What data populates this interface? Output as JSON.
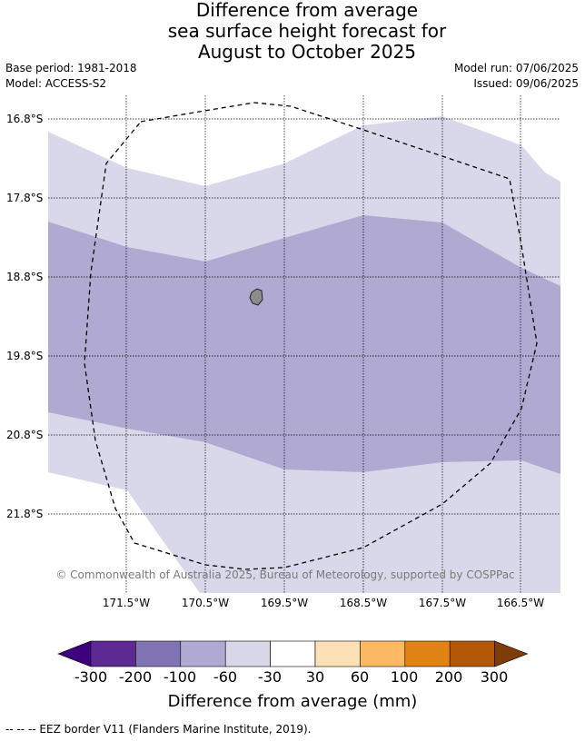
{
  "title_lines": [
    "Difference from average",
    "sea surface height forecast for",
    "August to October 2025"
  ],
  "meta": {
    "base_period": "Base period: 1981-2018",
    "model": "Model: ACCESS-S2",
    "model_run": "Model run: 07/06/2025",
    "issued": "Issued: 09/06/2025"
  },
  "map": {
    "lat_labels": [
      "16.8°S",
      "17.8°S",
      "18.8°S",
      "19.8°S",
      "20.8°S",
      "21.8°S"
    ],
    "lon_labels": [
      "171.5°W",
      "170.5°W",
      "169.5°W",
      "168.5°W",
      "167.5°W",
      "166.5°W"
    ],
    "copyright": "© Commonwealth of Australia 2025, Bureau of Meteorology, supported by COSPPac",
    "grid": true,
    "band_colors": {
      "-60_to_-30": "#d8d8ea",
      "-100_to_-60": "#b0aad3",
      "-30_to_30": "#ffffff"
    },
    "island_color": "#8c8c8c"
  },
  "colorbar": {
    "ticks": [
      "-300",
      "-200",
      "-100",
      "-60",
      "-30",
      "30",
      "60",
      "100",
      "200",
      "300"
    ],
    "colors": [
      "#3f007d",
      "#5d2a94",
      "#8074b3",
      "#b0aad3",
      "#d8d8ea",
      "#ffffff",
      "#fee0b6",
      "#fdb863",
      "#e08214",
      "#b35806",
      "#7f3b08"
    ],
    "title": "Difference from average (mm)"
  },
  "footnote": "--  --  -- EEZ border V11 (Flanders Marine Institute, 2019)."
}
